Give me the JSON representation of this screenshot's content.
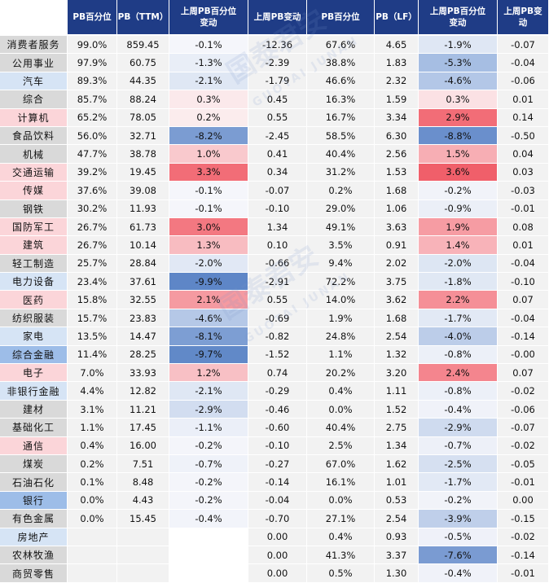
{
  "header": {
    "industry": "",
    "pb_pct": "PB百分位",
    "pb_ttm": "PB（TTM）",
    "last_week_pb_pct_change": "上周PB百分位变动",
    "last_week_pb_change": "上周PB变动",
    "pb_lf_pct": "PB百分位",
    "pb_lf": "PB（LF）",
    "last_week_pb_lf_pct_change": "上周PB百分位变动",
    "last_week_pb_lf_change": "上周PB变动"
  },
  "colors": {
    "header_bg": "#1f3c86",
    "header_text": "#ffffff",
    "neutral_cell": "#f2f2f2",
    "white": "#ffffff"
  },
  "rows": [
    {
      "name": "消费者服务",
      "nameColor": "#d9d9d9",
      "pbPct": "99.0%",
      "pbTtm": "859.45",
      "chgPct": "-0.1%",
      "chgPctColor": "#f5f6fb",
      "chgPb": "-12.36",
      "pbLfPct": "67.6%",
      "pbLf": "4.65",
      "chgLfPct": "-1.9%",
      "chgLfPctColor": "#dfe7f4",
      "chgLf": "-0.07"
    },
    {
      "name": "公用事业",
      "nameColor": "#d9d9d9",
      "pbPct": "97.9%",
      "pbTtm": "60.75",
      "chgPct": "-1.3%",
      "chgPctColor": "#e9eef7",
      "chgPb": "-2.39",
      "pbLfPct": "38.8%",
      "pbLf": "1.83",
      "chgLfPct": "-5.3%",
      "chgLfPctColor": "#a6bee3",
      "chgLf": "-0.04"
    },
    {
      "name": "汽车",
      "nameColor": "#d6e4f5",
      "pbPct": "89.3%",
      "pbTtm": "44.35",
      "chgPct": "-2.1%",
      "chgPctColor": "#dfe7f4",
      "chgPb": "-1.79",
      "pbLfPct": "46.6%",
      "pbLf": "2.32",
      "chgLfPct": "-4.6%",
      "chgLfPctColor": "#b3c7e7",
      "chgLf": "-0.06"
    },
    {
      "name": "综合",
      "nameColor": "#d9d9d9",
      "pbPct": "85.7%",
      "pbTtm": "88.24",
      "chgPct": "0.3%",
      "chgPctColor": "#fbe9eb",
      "chgPb": "0.45",
      "pbLfPct": "16.3%",
      "pbLf": "1.59",
      "chgLfPct": "0.3%",
      "chgLfPctColor": "#fbe1e4",
      "chgLf": "0.01"
    },
    {
      "name": "计算机",
      "nameColor": "#fbd5d9",
      "pbPct": "65.2%",
      "pbTtm": "78.05",
      "chgPct": "0.2%",
      "chgPctColor": "#fbeced",
      "chgPb": "0.55",
      "pbLfPct": "16.7%",
      "pbLf": "3.34",
      "chgLfPct": "2.9%",
      "chgLfPctColor": "#f26d77",
      "chgLf": "0.14"
    },
    {
      "name": "食品饮料",
      "nameColor": "#d9d9d9",
      "pbPct": "56.0%",
      "pbTtm": "32.71",
      "chgPct": "-8.2%",
      "chgPctColor": "#7b9cd2",
      "chgPb": "-2.45",
      "pbLfPct": "58.5%",
      "pbLf": "6.30",
      "chgLfPct": "-8.8%",
      "chgLfPctColor": "#6a8fcc",
      "chgLf": "-0.50"
    },
    {
      "name": "机械",
      "nameColor": "#d9d9d9",
      "pbPct": "47.7%",
      "pbTtm": "38.78",
      "chgPct": "1.0%",
      "chgPctColor": "#f9c9cd",
      "chgPb": "0.41",
      "pbLfPct": "40.4%",
      "pbLf": "2.56",
      "chgLfPct": "1.5%",
      "chgLfPctColor": "#f7aeb4",
      "chgLf": "0.04"
    },
    {
      "name": "交通运输",
      "nameColor": "#fbd5d9",
      "pbPct": "39.2%",
      "pbTtm": "19.45",
      "chgPct": "3.3%",
      "chgPctColor": "#f26d77",
      "chgPb": "0.34",
      "pbLfPct": "31.2%",
      "pbLf": "1.53",
      "chgLfPct": "3.6%",
      "chgLfPctColor": "#f05f6a",
      "chgLf": "0.03"
    },
    {
      "name": "传媒",
      "nameColor": "#fbd5d9",
      "pbPct": "37.6%",
      "pbTtm": "39.08",
      "chgPct": "-0.1%",
      "chgPctColor": "#f5f6fb",
      "chgPb": "-0.07",
      "pbLfPct": "0.2%",
      "pbLf": "1.68",
      "chgLfPct": "-0.2%",
      "chgLfPctColor": "#f1f3f9",
      "chgLf": "-0.03"
    },
    {
      "name": "钢铁",
      "nameColor": "#d9d9d9",
      "pbPct": "30.2%",
      "pbTtm": "11.93",
      "chgPct": "-0.1%",
      "chgPctColor": "#f5f6fb",
      "chgPb": "-0.10",
      "pbLfPct": "29.0%",
      "pbLf": "1.06",
      "chgLfPct": "-0.9%",
      "chgLfPctColor": "#ebeff7",
      "chgLf": "-0.01"
    },
    {
      "name": "国防军工",
      "nameColor": "#fbd5d9",
      "pbPct": "26.7%",
      "pbTtm": "61.73",
      "chgPct": "3.0%",
      "chgPctColor": "#f37881",
      "chgPb": "1.34",
      "pbLfPct": "49.1%",
      "pbLf": "3.63",
      "chgLfPct": "1.9%",
      "chgLfPctColor": "#f69ca3",
      "chgLf": "0.08"
    },
    {
      "name": "建筑",
      "nameColor": "#fbd5d9",
      "pbPct": "26.7%",
      "pbTtm": "10.14",
      "chgPct": "1.3%",
      "chgPctColor": "#f8bcc1",
      "chgPb": "0.10",
      "pbLfPct": "3.5%",
      "pbLf": "0.91",
      "chgLfPct": "1.4%",
      "chgLfPctColor": "#f8b3b9",
      "chgLf": "0.01"
    },
    {
      "name": "轻工制造",
      "nameColor": "#d9d9d9",
      "pbPct": "25.7%",
      "pbTtm": "28.84",
      "chgPct": "-2.0%",
      "chgPctColor": "#e1e8f5",
      "chgPb": "-0.66",
      "pbLfPct": "9.4%",
      "pbLf": "2.02",
      "chgLfPct": "-2.0%",
      "chgLfPctColor": "#dde6f3",
      "chgLf": "-0.04"
    },
    {
      "name": "电力设备",
      "nameColor": "#d6e4f5",
      "pbPct": "23.4%",
      "pbTtm": "37.61",
      "chgPct": "-9.9%",
      "chgPctColor": "#5e86c7",
      "chgPb": "-2.91",
      "pbLfPct": "72.2%",
      "pbLf": "3.75",
      "chgLfPct": "-1.8%",
      "chgLfPctColor": "#e0e8f4",
      "chgLf": "-0.10"
    },
    {
      "name": "医药",
      "nameColor": "#fbd5d9",
      "pbPct": "15.8%",
      "pbTtm": "32.55",
      "chgPct": "2.1%",
      "chgPctColor": "#f59aa1",
      "chgPb": "0.55",
      "pbLfPct": "14.0%",
      "pbLf": "3.62",
      "chgLfPct": "2.2%",
      "chgLfPctColor": "#f58f97",
      "chgLf": "0.07"
    },
    {
      "name": "纺织服装",
      "nameColor": "#d9d9d9",
      "pbPct": "15.7%",
      "pbTtm": "23.83",
      "chgPct": "-4.6%",
      "chgPctColor": "#b5c8e7",
      "chgPb": "-0.69",
      "pbLfPct": "1.9%",
      "pbLf": "1.68",
      "chgLfPct": "-1.7%",
      "chgLfPctColor": "#e2e9f5",
      "chgLf": "-0.04"
    },
    {
      "name": "家电",
      "nameColor": "#d6e4f5",
      "pbPct": "13.5%",
      "pbTtm": "14.47",
      "chgPct": "-8.1%",
      "chgPctColor": "#7d9ed3",
      "chgPb": "-0.82",
      "pbLfPct": "24.8%",
      "pbLf": "2.54",
      "chgLfPct": "-4.0%",
      "chgLfPctColor": "#bccde9",
      "chgLf": "-0.14"
    },
    {
      "name": "综合金融",
      "nameColor": "#9dbde8",
      "pbPct": "11.4%",
      "pbTtm": "28.25",
      "chgPct": "-9.7%",
      "chgPctColor": "#6189c8",
      "chgPb": "-1.52",
      "pbLfPct": "1.1%",
      "pbLf": "1.32",
      "chgLfPct": "-0.8%",
      "chgLfPctColor": "#ecf0f8",
      "chgLf": "-0.00"
    },
    {
      "name": "电子",
      "nameColor": "#fbd5d9",
      "pbPct": "7.0%",
      "pbTtm": "33.93",
      "chgPct": "1.2%",
      "chgPctColor": "#f8c0c5",
      "chgPb": "0.74",
      "pbLfPct": "20.2%",
      "pbLf": "3.20",
      "chgLfPct": "2.4%",
      "chgLfPctColor": "#f4858e",
      "chgLf": "0.07"
    },
    {
      "name": "非银行金融",
      "nameColor": "#d6e4f5",
      "pbPct": "4.4%",
      "pbTtm": "12.82",
      "chgPct": "-2.1%",
      "chgPctColor": "#dfe7f4",
      "chgPb": "-0.29",
      "pbLfPct": "0.4%",
      "pbLf": "1.11",
      "chgLfPct": "-0.8%",
      "chgLfPctColor": "#ecf0f8",
      "chgLf": "-0.02"
    },
    {
      "name": "建材",
      "nameColor": "#d9d9d9",
      "pbPct": "3.1%",
      "pbTtm": "11.21",
      "chgPct": "-2.9%",
      "chgPctColor": "#d2ddf0",
      "chgPb": "-0.46",
      "pbLfPct": "0.0%",
      "pbLf": "1.52",
      "chgLfPct": "-0.4%",
      "chgLfPctColor": "#f0f2f9",
      "chgLf": "-0.06"
    },
    {
      "name": "基础化工",
      "nameColor": "#d9d9d9",
      "pbPct": "1.1%",
      "pbTtm": "17.45",
      "chgPct": "-1.1%",
      "chgPctColor": "#ebeff8",
      "chgPb": "-0.60",
      "pbLfPct": "40.4%",
      "pbLf": "2.75",
      "chgLfPct": "-2.9%",
      "chgLfPctColor": "#cfdbef",
      "chgLf": "-0.07"
    },
    {
      "name": "通信",
      "nameColor": "#fbd5d9",
      "pbPct": "0.4%",
      "pbTtm": "16.00",
      "chgPct": "-0.2%",
      "chgPctColor": "#f4f5fa",
      "chgPb": "-0.10",
      "pbLfPct": "2.5%",
      "pbLf": "1.34",
      "chgLfPct": "-0.7%",
      "chgLfPctColor": "#edf0f8",
      "chgLf": "-0.02"
    },
    {
      "name": "煤炭",
      "nameColor": "#d9d9d9",
      "pbPct": "0.2%",
      "pbTtm": "7.51",
      "chgPct": "-0.7%",
      "chgPctColor": "#eff2f9",
      "chgPb": "-0.27",
      "pbLfPct": "67.0%",
      "pbLf": "1.62",
      "chgLfPct": "-2.5%",
      "chgLfPctColor": "#d6e0f1",
      "chgLf": "-0.05"
    },
    {
      "name": "石油石化",
      "nameColor": "#d9d9d9",
      "pbPct": "0.1%",
      "pbTtm": "8.48",
      "chgPct": "-0.2%",
      "chgPctColor": "#f4f5fa",
      "chgPb": "-0.14",
      "pbLfPct": "16.1%",
      "pbLf": "1.01",
      "chgLfPct": "-1.7%",
      "chgLfPctColor": "#e2e9f5",
      "chgLf": "-0.01"
    },
    {
      "name": "银行",
      "nameColor": "#9dbde8",
      "pbPct": "0.0%",
      "pbTtm": "4.43",
      "chgPct": "-0.2%",
      "chgPctColor": "#f4f5fa",
      "chgPb": "-0.04",
      "pbLfPct": "0.0%",
      "pbLf": "0.53",
      "chgLfPct": "-0.2%",
      "chgLfPctColor": "#f1f3f9",
      "chgLf": "0.00"
    },
    {
      "name": "有色金属",
      "nameColor": "#d9d9d9",
      "pbPct": "0.0%",
      "pbTtm": "15.45",
      "chgPct": "-0.4%",
      "chgPctColor": "#f2f4fa",
      "chgPb": "-0.70",
      "pbLfPct": "27.1%",
      "pbLf": "2.54",
      "chgLfPct": "-3.9%",
      "chgLfPctColor": "#bfcfea",
      "chgLf": "-0.15"
    },
    {
      "name": "房地产",
      "nameColor": "#d6e4f5",
      "pbPct": "",
      "pbTtm": "",
      "chgPct": "",
      "chgPctColor": "#ffffff",
      "chgPb": "0.00",
      "pbLfPct": "0.4%",
      "pbLf": "0.93",
      "chgLfPct": "-0.5%",
      "chgLfPctColor": "#eff1f9",
      "chgLf": "-0.02"
    },
    {
      "name": "农林牧渔",
      "nameColor": "#d9d9d9",
      "pbPct": "",
      "pbTtm": "",
      "chgPct": "",
      "chgPctColor": "#ffffff",
      "chgPb": "0.00",
      "pbLfPct": "41.3%",
      "pbLf": "3.37",
      "chgLfPct": "-7.6%",
      "chgLfPctColor": "#7a9bd2",
      "chgLf": "-0.14"
    },
    {
      "name": "商贸零售",
      "nameColor": "#d9d9d9",
      "pbPct": "",
      "pbTtm": "",
      "chgPct": "",
      "chgPctColor": "#ffffff",
      "chgPb": "0.00",
      "pbLfPct": "0.5%",
      "pbLf": "1.30",
      "chgLfPct": "-0.4%",
      "chgLfPctColor": "#f0f2f9",
      "chgLf": "-0.01"
    }
  ]
}
